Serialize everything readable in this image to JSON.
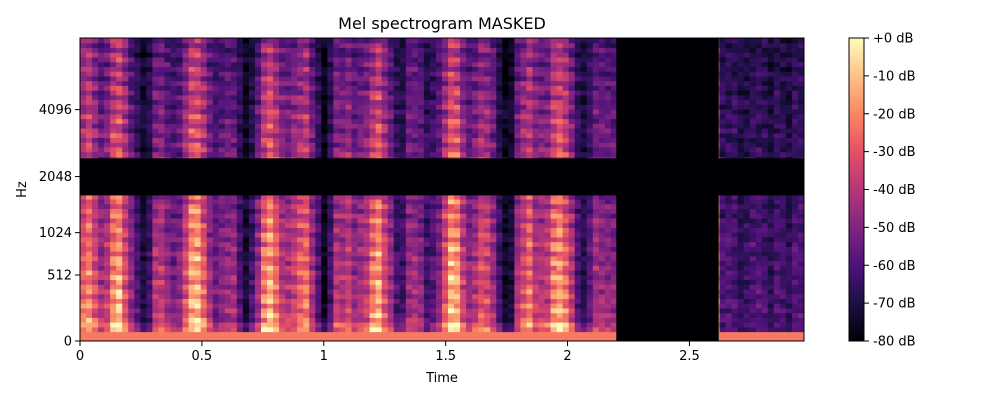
{
  "chart_data": {
    "type": "heatmap",
    "title": "Mel spectrogram MASKED",
    "xlabel": "Time",
    "ylabel": "Hz",
    "x_ticks": [
      {
        "value": 0,
        "label": "0"
      },
      {
        "value": 0.5,
        "label": "0.5"
      },
      {
        "value": 1,
        "label": "1"
      },
      {
        "value": 1.5,
        "label": "1.5"
      },
      {
        "value": 2,
        "label": "2"
      },
      {
        "value": 2.5,
        "label": "2.5"
      }
    ],
    "x_range": [
      0,
      2.97
    ],
    "y_scale": "mel",
    "y_ticks": [
      {
        "value": 0,
        "label": "0"
      },
      {
        "value": 512,
        "label": "512"
      },
      {
        "value": 1024,
        "label": "1024"
      },
      {
        "value": 2048,
        "label": "2048"
      },
      {
        "value": 4096,
        "label": "4096"
      }
    ],
    "y_range_hz": [
      0,
      8000
    ],
    "time_mask": {
      "start": 2.2,
      "end": 2.62
    },
    "freq_mask_hz": {
      "low": 1650,
      "high": 2500
    },
    "colormap": "magma",
    "colorbar": {
      "range_db": [
        -80,
        0
      ],
      "ticks": [
        {
          "value": 0,
          "label": "+0 dB"
        },
        {
          "value": -10,
          "label": "-10 dB"
        },
        {
          "value": -20,
          "label": "-20 dB"
        },
        {
          "value": -30,
          "label": "-30 dB"
        },
        {
          "value": -40,
          "label": "-40 dB"
        },
        {
          "value": -50,
          "label": "-50 dB"
        },
        {
          "value": -60,
          "label": "-60 dB"
        },
        {
          "value": -70,
          "label": "-70 dB"
        },
        {
          "value": -80,
          "label": "-80 dB"
        }
      ]
    }
  }
}
